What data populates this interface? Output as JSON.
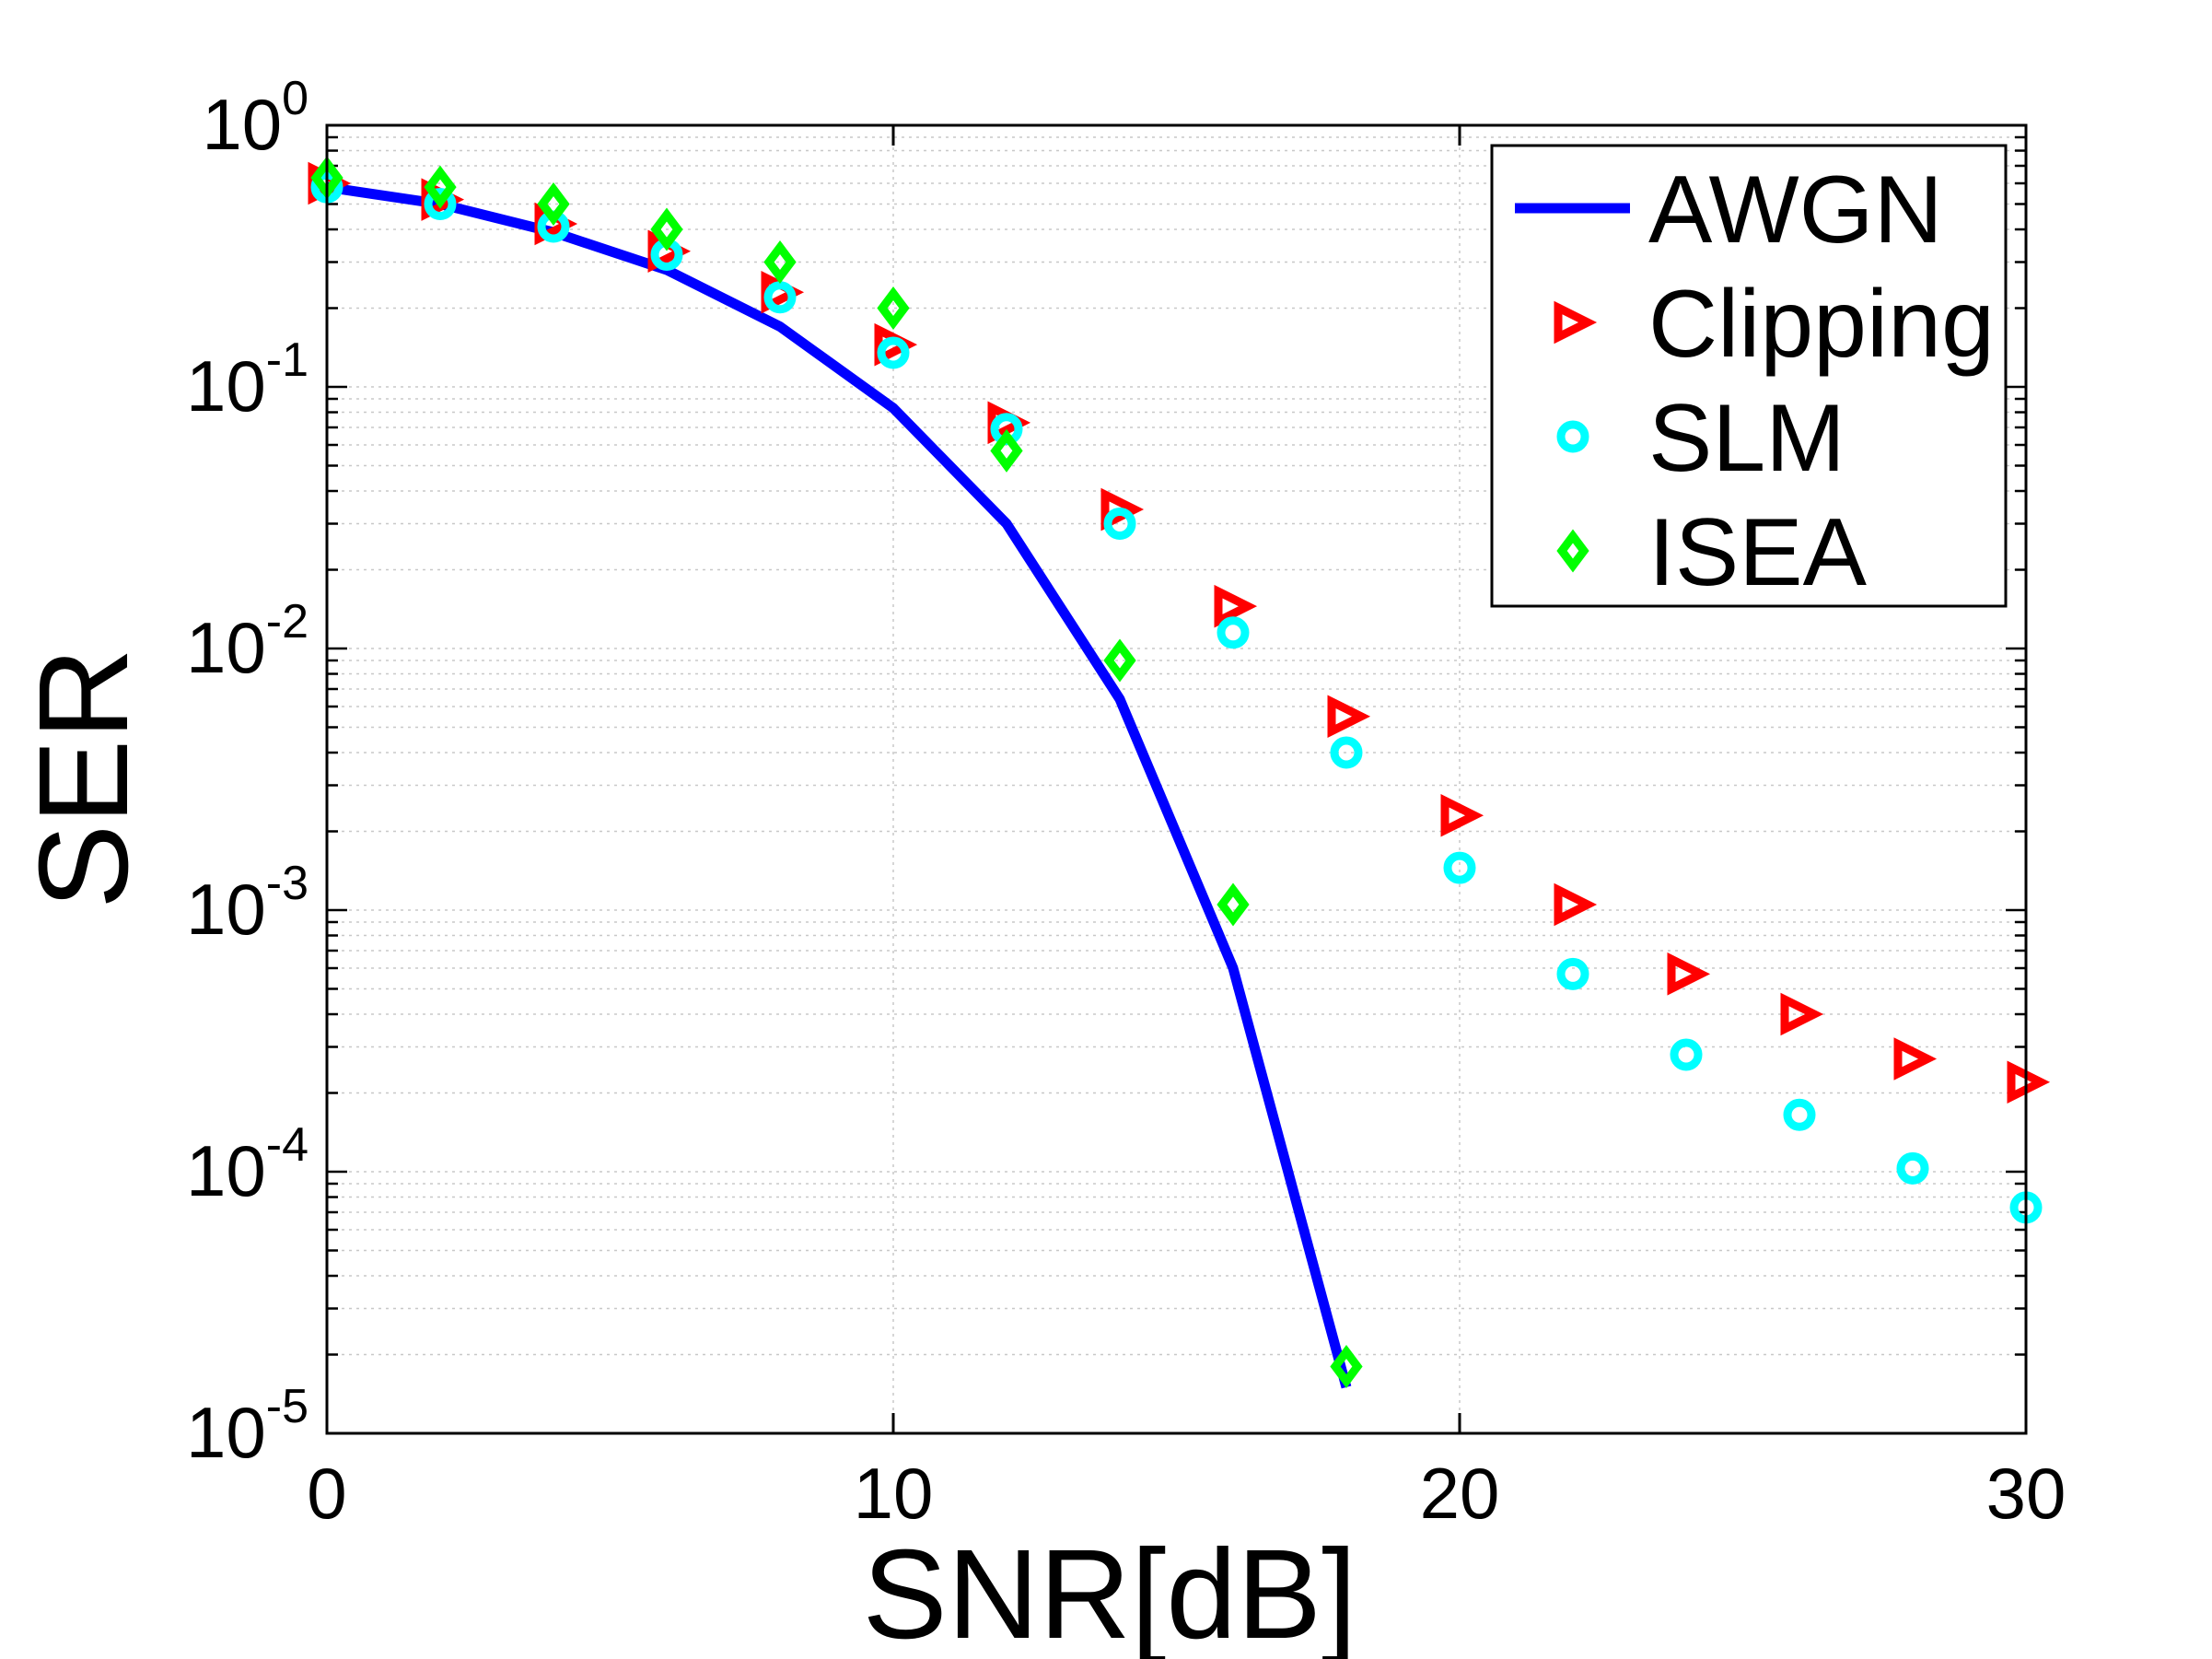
{
  "chart_data": {
    "type": "line",
    "title": "",
    "xlabel": "SNR[dB]",
    "ylabel": "SER",
    "xlim": [
      0,
      30
    ],
    "ylim_log10": [
      -5,
      0
    ],
    "yscale": "log",
    "grid": true,
    "legend_position": "top-right",
    "x_ticks": [
      {
        "value": 0,
        "label": "0"
      },
      {
        "value": 10,
        "label": "10"
      },
      {
        "value": 20,
        "label": "20"
      },
      {
        "value": 30,
        "label": "30"
      }
    ],
    "y_ticks": [
      {
        "exp": 0,
        "base": "10",
        "power": "0"
      },
      {
        "exp": -1,
        "base": "10",
        "power": "-1"
      },
      {
        "exp": -2,
        "base": "10",
        "power": "-2"
      },
      {
        "exp": -3,
        "base": "10",
        "power": "-3"
      },
      {
        "exp": -4,
        "base": "10",
        "power": "-4"
      },
      {
        "exp": -5,
        "base": "10",
        "power": "-5"
      }
    ],
    "series": [
      {
        "name": "AWGN",
        "style": "line",
        "marker": "none",
        "color": "#0000ff",
        "x": [
          0,
          2,
          4,
          6,
          8,
          10,
          12,
          14,
          16,
          18
        ],
        "y": [
          0.58,
          0.5,
          0.39,
          0.28,
          0.17,
          0.083,
          0.03,
          0.0064,
          0.0006,
          1.5e-05
        ]
      },
      {
        "name": "Clipping",
        "style": "marker",
        "marker": "triangle-right",
        "color": "#ff0000",
        "x": [
          0,
          2,
          4,
          6,
          8,
          10,
          12,
          14,
          16,
          18,
          20,
          22,
          24,
          26,
          28,
          30
        ],
        "y": [
          0.6,
          0.52,
          0.42,
          0.33,
          0.23,
          0.145,
          0.073,
          0.034,
          0.0145,
          0.0055,
          0.0023,
          0.00105,
          0.00057,
          0.0004,
          0.00027,
          0.00022
        ]
      },
      {
        "name": "SLM",
        "style": "marker",
        "marker": "circle",
        "color": "#00ffff",
        "x": [
          0,
          2,
          4,
          6,
          8,
          10,
          12,
          14,
          16,
          18,
          20,
          22,
          24,
          26,
          28,
          30
        ],
        "y": [
          0.58,
          0.5,
          0.41,
          0.32,
          0.22,
          0.135,
          0.069,
          0.03,
          0.0115,
          0.004,
          0.00145,
          0.00057,
          0.00028,
          0.000165,
          0.000103,
          7.3e-05
        ]
      },
      {
        "name": "ISEA",
        "style": "marker",
        "marker": "diamond",
        "color": "#00ff00",
        "x": [
          0,
          2,
          4,
          6,
          8,
          10,
          12,
          14,
          16,
          18
        ],
        "y": [
          0.63,
          0.58,
          0.5,
          0.4,
          0.3,
          0.2,
          0.057,
          0.009,
          0.00105,
          1.8e-05
        ]
      }
    ]
  }
}
